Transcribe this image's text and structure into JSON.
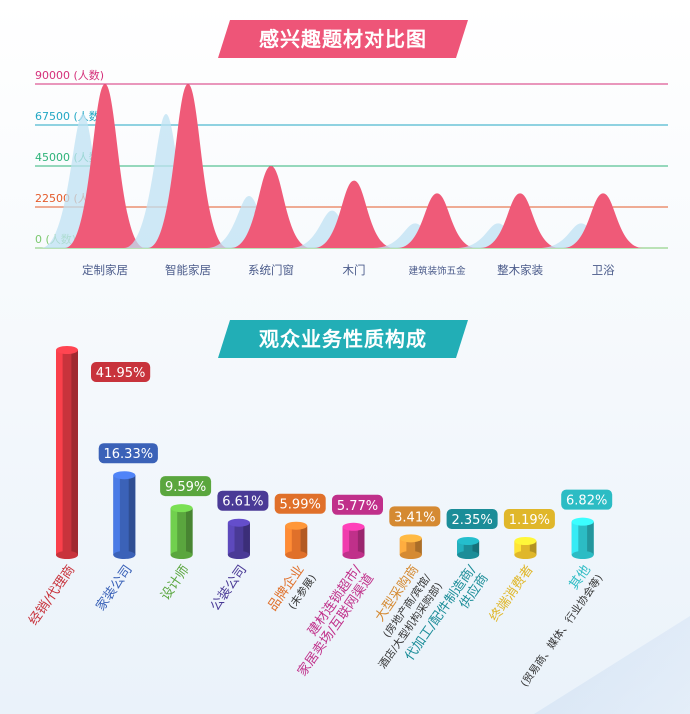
{
  "titles": {
    "chart1": "感兴趣题材对比图",
    "chart2": "观众业务性质构成"
  },
  "chart_data": [
    {
      "type": "area",
      "title": "感兴趣题材对比图",
      "categories": [
        "定制家居",
        "智能家居",
        "系统门窗",
        "木门",
        "建筑装饰五金",
        "整木家装",
        "卫浴"
      ],
      "values": [
        90000,
        90000,
        45000,
        37000,
        30000,
        30000,
        30000
      ],
      "y_ticks": [
        "90000 (人数)",
        "67500 (人数)",
        "45000 (人数)",
        "22500 (人数)",
        "0 (人数)"
      ],
      "ylim": [
        0,
        90000
      ],
      "colors": {
        "grid": [
          "#d5317a",
          "#22a7c4",
          "#2fb37a",
          "#e45b2b",
          "#7bc96f"
        ],
        "peak": "#ef5a78",
        "shadow": "#bfe1f3"
      }
    },
    {
      "type": "bar",
      "title": "观众业务性质构成",
      "unit": "%",
      "categories": [
        {
          "label": "经销/代理商",
          "sub": "",
          "color": "#c8333c"
        },
        {
          "label": "家装公司",
          "sub": "",
          "color": "#3b62b8"
        },
        {
          "label": "设计师",
          "sub": "",
          "color": "#5aa63e"
        },
        {
          "label": "公装公司",
          "sub": "",
          "color": "#4a3a96"
        },
        {
          "label": "品牌企业",
          "sub": "(未参展)",
          "color": "#e0702a"
        },
        {
          "label": "建材连锁超市/",
          "sub": "家居卖场/互联网渠道",
          "color": "#c0308a"
        },
        {
          "label": "大型采购商",
          "sub": "(房地产商/宾馆/",
          "sub2": "酒店/大型机构采购部)",
          "color": "#d58a32"
        },
        {
          "label": "代加工/配件制造商/",
          "sub": "供应商",
          "color": "#1b8d98"
        },
        {
          "label": "终端消费者",
          "sub": "",
          "color": "#e0b72a"
        },
        {
          "label": "其他",
          "sub": "(贸易商、媒体、行业协会等)",
          "color": "#2cbcc4"
        }
      ],
      "values": [
        41.95,
        16.33,
        9.59,
        6.61,
        5.99,
        5.77,
        3.41,
        2.35,
        1.19,
        6.82
      ],
      "value_labels": [
        "41.95%",
        "16.33%",
        "9.59%",
        "6.61%",
        "5.99%",
        "5.77%",
        "3.41%",
        "2.35%",
        "1.19%",
        "6.82%"
      ]
    }
  ]
}
